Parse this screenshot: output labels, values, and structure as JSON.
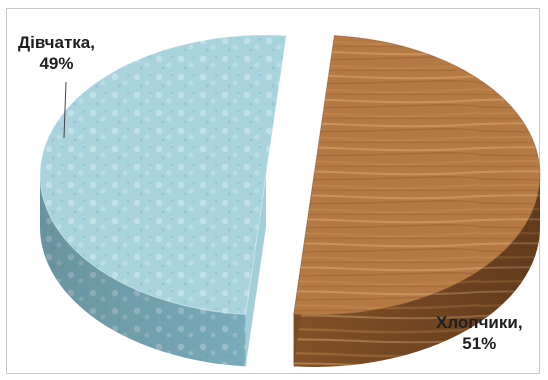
{
  "chart_data": {
    "type": "pie",
    "style": "3d-exploded",
    "categories": [
      "Дівчатка",
      "Хлопчики"
    ],
    "values": [
      49,
      51
    ],
    "labels": [
      {
        "name": "Дівчатка,",
        "percent": "49%"
      },
      {
        "name": "Хлопчики,",
        "percent": "51%"
      }
    ],
    "legend": "none",
    "colors": {
      "girls_top": "#a9d4de",
      "girls_side": "#7fb3c2",
      "boys_top": "#b57a44",
      "boys_side": "#8a5428",
      "wood_grain": "#d19a62"
    }
  }
}
